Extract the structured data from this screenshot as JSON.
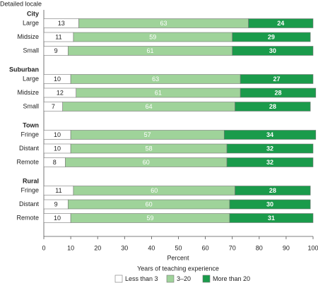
{
  "chart_data": {
    "type": "stacked-bar-horizontal",
    "y_axis_label": "Detailed locale",
    "x_axis_label": "Percent",
    "legend_title": "Years of teaching experience",
    "groups": [
      {
        "name": "City",
        "categories": [
          "Large",
          "Midsize",
          "Small"
        ]
      },
      {
        "name": "Suburban",
        "categories": [
          "Large",
          "Midsize",
          "Small"
        ]
      },
      {
        "name": "Town",
        "categories": [
          "Fringe",
          "Distant",
          "Remote"
        ]
      },
      {
        "name": "Rural",
        "categories": [
          "Fringe",
          "Distant",
          "Remote"
        ]
      }
    ],
    "series": [
      {
        "name": "Less than 3",
        "color": "#ffffff",
        "label_color": "#222222",
        "values": [
          13,
          11,
          9,
          10,
          12,
          7,
          10,
          10,
          8,
          11,
          9,
          10
        ]
      },
      {
        "name": "3–20",
        "color": "#9fd39a",
        "label_color": "#ffffff",
        "values": [
          63,
          59,
          61,
          63,
          61,
          64,
          57,
          58,
          60,
          60,
          60,
          59
        ]
      },
      {
        "name": "More than 20",
        "color": "#1a9b4b",
        "label_color": "#ffffff",
        "values": [
          24,
          29,
          30,
          27,
          28,
          28,
          34,
          32,
          32,
          28,
          30,
          31
        ]
      }
    ],
    "xlim": [
      0,
      100
    ],
    "xticks": [
      0,
      10,
      20,
      30,
      40,
      50,
      60,
      70,
      80,
      90,
      100
    ]
  }
}
